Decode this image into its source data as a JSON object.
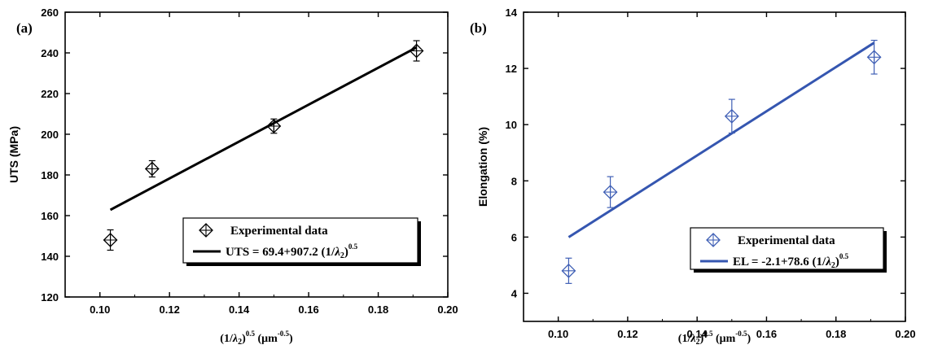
{
  "chart_data": [
    {
      "type": "scatter",
      "panel_label": "(a)",
      "xlabel_main": "(1/",
      "xlabel_lambda": "λ",
      "xlabel_sub": "2",
      "xlabel_close": ")",
      "xlabel_exp": "0.5",
      "xlabel_unit": "(μm",
      "xlabel_unit_exp": "-0.5",
      "xlabel_unit_close": ")",
      "ylabel": "UTS (MPa)",
      "xlim": [
        0.09,
        0.2
      ],
      "ylim": [
        120,
        260
      ],
      "xticks": [
        "0.10",
        "0.12",
        "0.14",
        "0.16",
        "0.18",
        "0.20"
      ],
      "yticks": [
        "120",
        "140",
        "160",
        "180",
        "200",
        "220",
        "240",
        "260"
      ],
      "series": [
        {
          "name": "Experimental data",
          "x": [
            0.103,
            0.115,
            0.15,
            0.191
          ],
          "y": [
            148,
            183,
            204,
            241
          ],
          "err": [
            5,
            4,
            3.5,
            5
          ]
        }
      ],
      "fit": {
        "name_prefix": "UTS = 69.4+907.2 (1/",
        "name_lambda": "λ",
        "name_sub": "2",
        "name_close": ")",
        "name_exp": "0.5",
        "intercept": 69.4,
        "slope": 907.2,
        "x_range": [
          0.103,
          0.191
        ]
      },
      "marker_color": "#000000",
      "fit_color": "#000000"
    },
    {
      "type": "scatter",
      "panel_label": "(b)",
      "xlabel_main": "(1/",
      "xlabel_lambda": "λ",
      "xlabel_sub": "2",
      "xlabel_close": ")",
      "xlabel_exp": "0.5",
      "xlabel_unit": "(μm",
      "xlabel_unit_exp": "-0.5",
      "xlabel_unit_close": ")",
      "ylabel": "Elongation (%)",
      "xlim": [
        0.09,
        0.2
      ],
      "ylim": [
        3,
        14
      ],
      "xticks": [
        "0.10",
        "0.12",
        "0.14",
        "0.16",
        "0.18",
        "0.20"
      ],
      "yticks": [
        "4",
        "6",
        "8",
        "10",
        "12",
        "14"
      ],
      "series": [
        {
          "name": "Experimental data",
          "x": [
            0.103,
            0.115,
            0.15,
            0.191
          ],
          "y": [
            4.8,
            7.6,
            10.3,
            12.4
          ],
          "err": [
            0.45,
            0.55,
            0.6,
            0.6
          ]
        }
      ],
      "fit": {
        "name_prefix": "EL = -2.1+78.6 (1/",
        "name_lambda": "λ",
        "name_sub": "2",
        "name_close": ")",
        "name_exp": "0.5",
        "intercept": -2.1,
        "slope": 78.6,
        "x_range": [
          0.103,
          0.191
        ]
      },
      "marker_color": "#3f5fb5",
      "fit_color": "#3556b0"
    }
  ]
}
